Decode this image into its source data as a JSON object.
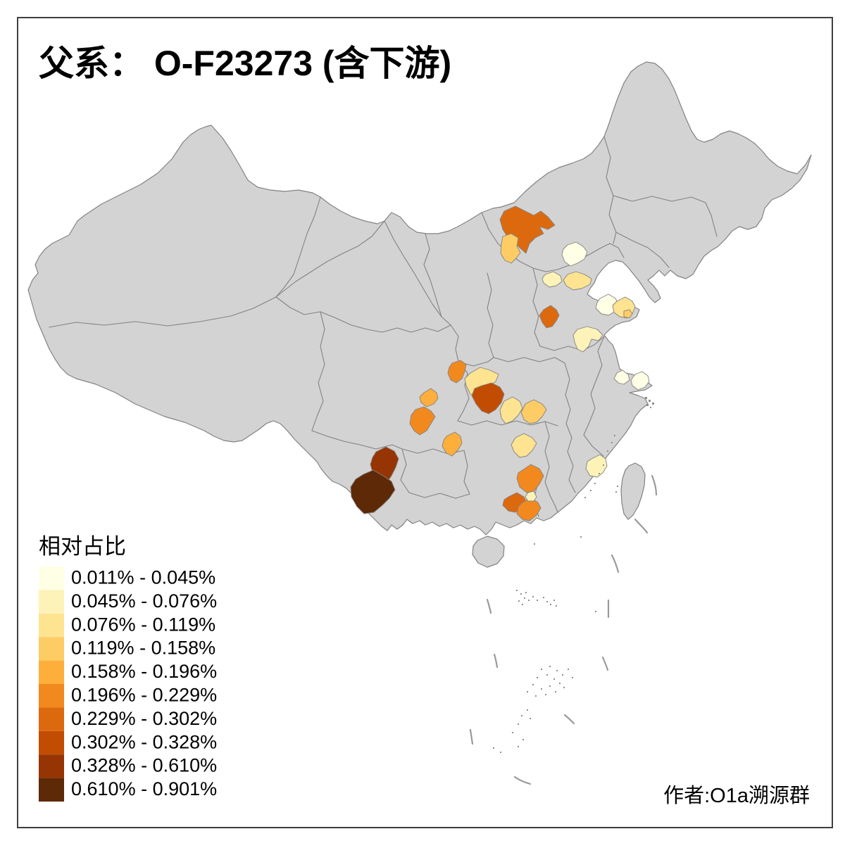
{
  "title": "父系： O-F23273 (含下游)",
  "caption": "作者:O1a溯源群",
  "legend": {
    "title": "相对占比",
    "classes": [
      {
        "label": "0.011% - 0.045%",
        "color": "#FFFFE5"
      },
      {
        "label": "0.045% - 0.076%",
        "color": "#FDF3B9"
      },
      {
        "label": "0.076% - 0.119%",
        "color": "#FEE391"
      },
      {
        "label": "0.119% - 0.158%",
        "color": "#FDCC65"
      },
      {
        "label": "0.158% - 0.196%",
        "color": "#FDAE3B"
      },
      {
        "label": "0.196% - 0.229%",
        "color": "#F2891F"
      },
      {
        "label": "0.229% - 0.302%",
        "color": "#DD690E"
      },
      {
        "label": "0.302% - 0.328%",
        "color": "#C24D02"
      },
      {
        "label": "0.328% - 0.610%",
        "color": "#963503"
      },
      {
        "label": "0.610% - 0.901%",
        "color": "#5E2906"
      }
    ]
  },
  "map": {
    "land_color": "#D3D3D3",
    "border_color": "#828282",
    "sea_color": "#FFFFFF",
    "regions": [
      {
        "class_index": 6
      },
      {
        "class_index": 3
      },
      {
        "class_index": 0
      },
      {
        "class_index": 1
      },
      {
        "class_index": 2
      },
      {
        "class_index": 0
      },
      {
        "class_index": 2
      },
      {
        "class_index": 3
      },
      {
        "class_index": 6
      },
      {
        "class_index": 1
      },
      {
        "class_index": 0
      },
      {
        "class_index": 0
      },
      {
        "class_index": 5
      },
      {
        "class_index": 2
      },
      {
        "class_index": 7
      },
      {
        "class_index": 4
      },
      {
        "class_index": 5
      },
      {
        "class_index": 2
      },
      {
        "class_index": 3
      },
      {
        "class_index": 4
      },
      {
        "class_index": 2
      },
      {
        "class_index": 8
      },
      {
        "class_index": 9
      },
      {
        "class_index": 5
      },
      {
        "class_index": 6
      },
      {
        "class_index": 5
      },
      {
        "class_index": 1
      },
      {
        "class_index": 1
      }
    ]
  }
}
